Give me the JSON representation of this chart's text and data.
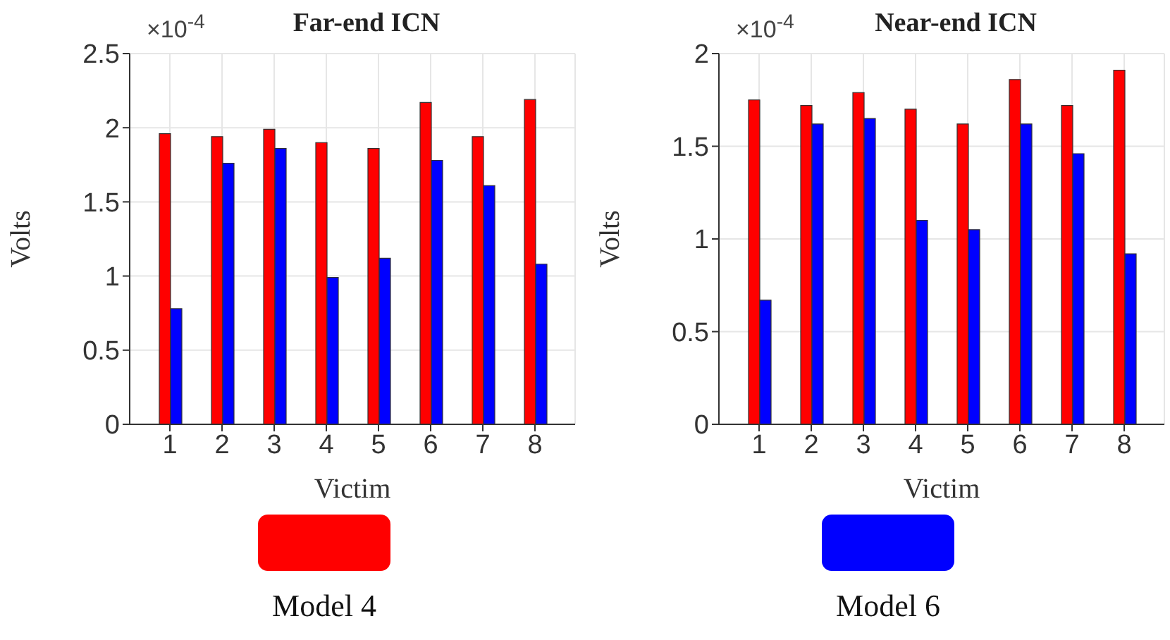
{
  "chart_data": [
    {
      "type": "bar",
      "title": "Far-end ICN",
      "xlabel": "Victim",
      "ylabel": "Volts",
      "annotations": [
        "×10$^{-4}$"
      ],
      "categories": [
        "1",
        "2",
        "3",
        "4",
        "5",
        "6",
        "7",
        "8"
      ],
      "series": [
        {
          "name": "Model 4",
          "color": "#ff0000",
          "values": [
            1.96,
            1.94,
            1.99,
            1.9,
            1.86,
            2.17,
            1.94,
            2.19
          ]
        },
        {
          "name": "Model 6",
          "color": "#0000ff",
          "values": [
            0.78,
            1.76,
            1.86,
            0.99,
            1.12,
            1.78,
            1.61,
            1.08
          ]
        }
      ],
      "ylim": [
        0,
        2.5
      ],
      "yticks": [
        0,
        0.5,
        1,
        1.5,
        2,
        2.5
      ],
      "grid": true,
      "legend": "bottom"
    },
    {
      "type": "bar",
      "title": "Near-end ICN",
      "xlabel": "Victim",
      "ylabel": "Volts",
      "annotations": [
        "×10$^{-4}$"
      ],
      "categories": [
        "1",
        "2",
        "3",
        "4",
        "5",
        "6",
        "7",
        "8"
      ],
      "series": [
        {
          "name": "Model 4",
          "color": "#ff0000",
          "values": [
            1.75,
            1.72,
            1.79,
            1.7,
            1.62,
            1.86,
            1.72,
            1.91
          ]
        },
        {
          "name": "Model 6",
          "color": "#0000ff",
          "values": [
            0.67,
            1.62,
            1.65,
            1.1,
            1.05,
            1.62,
            1.46,
            0.92
          ]
        }
      ],
      "ylim": [
        0,
        2
      ],
      "yticks": [
        0,
        0.5,
        1,
        1.5,
        2
      ],
      "grid": true,
      "legend": "bottom"
    }
  ]
}
